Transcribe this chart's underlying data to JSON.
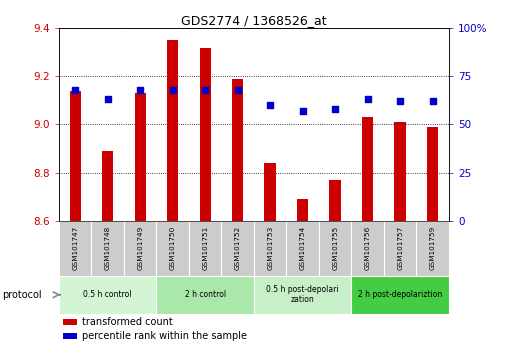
{
  "title": "GDS2774 / 1368526_at",
  "samples": [
    "GSM101747",
    "GSM101748",
    "GSM101749",
    "GSM101750",
    "GSM101751",
    "GSM101752",
    "GSM101753",
    "GSM101754",
    "GSM101755",
    "GSM101756",
    "GSM101757",
    "GSM101759"
  ],
  "bar_values": [
    9.14,
    8.89,
    9.13,
    9.35,
    9.32,
    9.19,
    8.84,
    8.69,
    8.77,
    9.03,
    9.01,
    8.99
  ],
  "percentile_values": [
    68,
    63,
    68,
    68,
    68,
    68,
    60,
    57,
    58,
    63,
    62,
    62
  ],
  "ylim_left": [
    8.6,
    9.4
  ],
  "ylim_right": [
    0,
    100
  ],
  "yticks_left": [
    8.6,
    8.8,
    9.0,
    9.2,
    9.4
  ],
  "yticks_right": [
    0,
    25,
    50,
    75,
    100
  ],
  "bar_color": "#cc0000",
  "dot_color": "#0000cc",
  "bar_bottom": 8.6,
  "groups": [
    {
      "label": "0.5 h control",
      "start": 0,
      "end": 3,
      "color": "#d4f5d4"
    },
    {
      "label": "2 h control",
      "start": 3,
      "end": 6,
      "color": "#aae8aa"
    },
    {
      "label": "0.5 h post-depolarization",
      "start": 6,
      "end": 9,
      "color": "#c8f0c8"
    },
    {
      "label": "2 h post-depolariztion",
      "start": 9,
      "end": 12,
      "color": "#44cc44"
    }
  ],
  "protocol_label": "protocol",
  "legend_items": [
    {
      "label": "transformed count",
      "color": "#cc0000"
    },
    {
      "label": "percentile rank within the sample",
      "color": "#0000cc"
    }
  ],
  "sample_box_color": "#cccccc",
  "bg_color": "#ffffff"
}
